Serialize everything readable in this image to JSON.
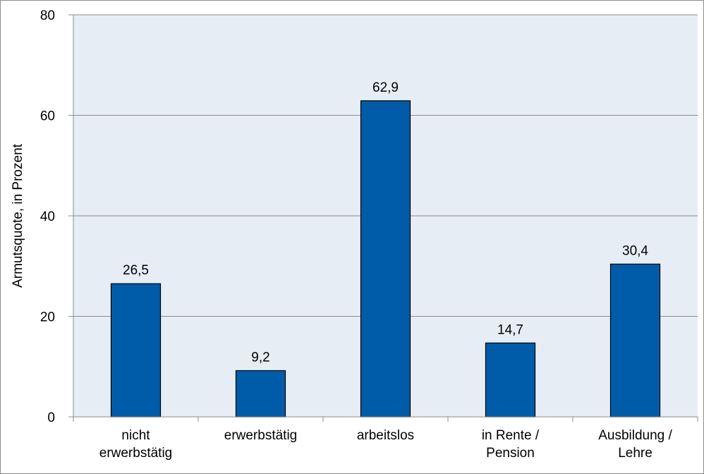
{
  "chart_data": {
    "type": "bar",
    "categories": [
      [
        "nicht",
        "erwerbstätig"
      ],
      [
        "erwerbstätig"
      ],
      [
        "arbeitslos"
      ],
      [
        "in Rente /",
        "Pension"
      ],
      [
        "Ausbildung /",
        "Lehre"
      ]
    ],
    "values": [
      26.5,
      9.2,
      62.9,
      14.7,
      30.4
    ],
    "value_labels": [
      "26,5",
      "9,2",
      "62,9",
      "14,7",
      "30,4"
    ],
    "ylabel": "Armutsquote, in Prozent",
    "ylim": [
      0,
      80
    ],
    "yticks": [
      0,
      20,
      40,
      60,
      80
    ],
    "ytick_labels": [
      "0",
      "20",
      "40",
      "60",
      "80"
    ],
    "grid": true,
    "colors": {
      "bar_fill": "#005ca9",
      "bar_stroke": "#000000",
      "plot_background": "#e6edf5",
      "gridline": "#8c8c8c"
    }
  }
}
